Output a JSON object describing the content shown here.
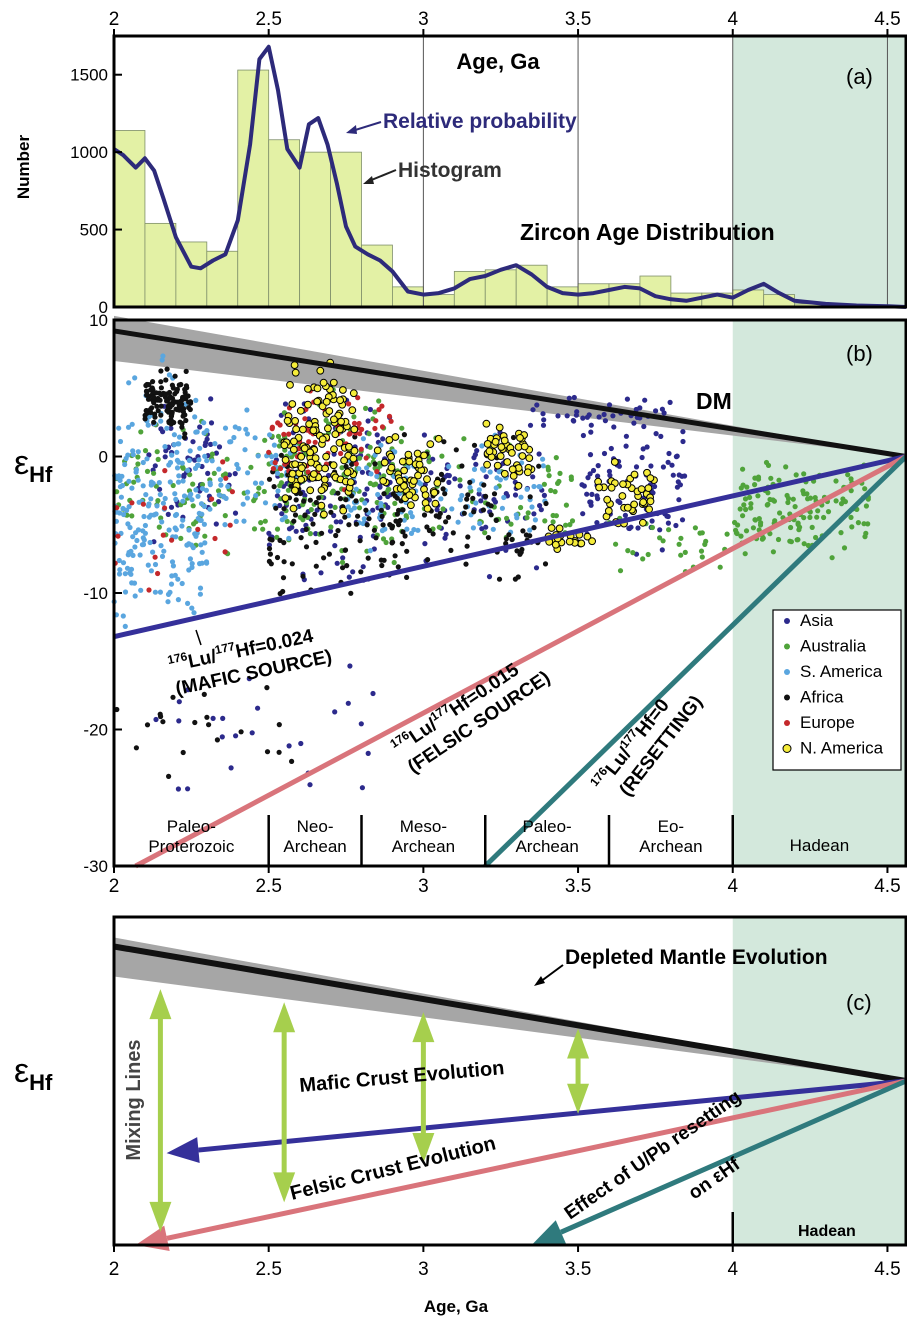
{
  "colors": {
    "hadean_bg": "#d3e8dc",
    "histogram_fill": "#e3f1a5",
    "prob_line": "#2d2a7a",
    "dm_line": "#111111",
    "dm_band": "#a6a6a6",
    "mafic_line": "#35309a",
    "felsic_line": "#d9747b",
    "resetting_line": "#2f7a7d",
    "mixing_arrow": "#a6cf4d",
    "asia": "#2c2a8c",
    "australia": "#4fa33a",
    "s_america": "#5aa6df",
    "africa": "#111111",
    "europe": "#c4282b",
    "n_america": "#f5ec3a"
  },
  "chart_data": [
    {
      "id": "a",
      "type": "bar",
      "panel_label": "(a)",
      "title": "Zircon Age Distribution",
      "xlabel": "Age, Ga",
      "ylabel": "Number",
      "xlim": [
        2,
        4.56
      ],
      "ylim": [
        0,
        1750
      ],
      "xticks": [
        2,
        2.5,
        3,
        3.5,
        4,
        4.5
      ],
      "xtick_labels": [
        "2",
        "2.5",
        "3",
        "3.5",
        "4",
        "4.5"
      ],
      "yticks": [
        0,
        500,
        1000,
        1500
      ],
      "ytick_labels": [
        "0",
        "500",
        "1000",
        "1500"
      ],
      "histogram": {
        "name": "Histogram",
        "bin_width": 0.1,
        "bin_starts": [
          2.0,
          2.1,
          2.2,
          2.3,
          2.4,
          2.5,
          2.6,
          2.7,
          2.8,
          2.9,
          3.0,
          3.1,
          3.2,
          3.3,
          3.4,
          3.5,
          3.6,
          3.7,
          3.8,
          3.9,
          4.0,
          4.1,
          4.2,
          4.3,
          4.4,
          4.5
        ],
        "counts": [
          1140,
          540,
          420,
          360,
          1530,
          1080,
          1000,
          1000,
          400,
          130,
          80,
          230,
          240,
          270,
          130,
          150,
          150,
          200,
          90,
          90,
          110,
          80,
          20,
          10,
          5,
          5
        ]
      },
      "probability_curve": {
        "name": "Relative probability",
        "x": [
          2.0,
          2.03,
          2.07,
          2.1,
          2.13,
          2.16,
          2.2,
          2.25,
          2.28,
          2.32,
          2.36,
          2.4,
          2.44,
          2.47,
          2.5,
          2.53,
          2.56,
          2.6,
          2.63,
          2.66,
          2.69,
          2.72,
          2.75,
          2.78,
          2.82,
          2.86,
          2.9,
          2.95,
          3.0,
          3.05,
          3.1,
          3.15,
          3.2,
          3.25,
          3.3,
          3.35,
          3.4,
          3.45,
          3.5,
          3.55,
          3.6,
          3.65,
          3.7,
          3.75,
          3.8,
          3.85,
          3.9,
          3.95,
          4.0,
          4.05,
          4.1,
          4.15,
          4.2,
          4.3,
          4.4,
          4.5,
          4.56
        ],
        "y": [
          1020,
          980,
          900,
          960,
          880,
          700,
          450,
          260,
          250,
          300,
          340,
          560,
          1050,
          1600,
          1680,
          1400,
          1020,
          900,
          1180,
          1220,
          1050,
          800,
          520,
          390,
          340,
          300,
          230,
          100,
          80,
          90,
          120,
          180,
          200,
          240,
          270,
          210,
          130,
          90,
          80,
          90,
          110,
          130,
          120,
          70,
          50,
          40,
          60,
          80,
          60,
          110,
          150,
          90,
          40,
          20,
          10,
          5,
          0
        ]
      },
      "annotations": [
        "Relative probability",
        "Histogram",
        "Zircon Age Distribution",
        "Age, Ga"
      ]
    },
    {
      "id": "b",
      "type": "scatter",
      "panel_label": "(b)",
      "xlabel": "",
      "ylabel": "εHf",
      "xlim": [
        2,
        4.56
      ],
      "ylim": [
        -30,
        10
      ],
      "xticks": [
        2,
        2.5,
        3,
        3.5,
        4,
        4.5
      ],
      "xtick_labels": [
        "2",
        "2.5",
        "3",
        "3.5",
        "4",
        "4.5"
      ],
      "yticks": [
        -30,
        -20,
        -10,
        0,
        10
      ],
      "ytick_labels": [
        "-30",
        "-20",
        "-10",
        "0",
        "10"
      ],
      "lines": [
        {
          "name": "DM",
          "x": [
            2.0,
            4.56
          ],
          "y": [
            9.2,
            0.0
          ]
        },
        {
          "name": "176Lu/177Hf=0.024 (MAFIC SOURCE)",
          "x": [
            2.0,
            4.56
          ],
          "y": [
            -13.2,
            0.0
          ]
        },
        {
          "name": "176Lu/177Hf=0.015 (FELSIC SOURCE)",
          "x": [
            2.07,
            4.56
          ],
          "y": [
            -30.0,
            0.0
          ]
        },
        {
          "name": "176Lu/177Hf=0 (RESETTING)",
          "x": [
            3.2,
            4.56
          ],
          "y": [
            -30.0,
            0.0
          ]
        }
      ],
      "dm_band": {
        "x": [
          2.0,
          4.56
        ],
        "upper": [
          10.3,
          0.0
        ],
        "lower": [
          7.0,
          0.0
        ]
      },
      "series": [
        {
          "name": "Asia",
          "clusters": [
            [
              2.1,
              2.4,
              -8,
              6,
              60
            ],
            [
              2.5,
              2.9,
              -12,
              7,
              120
            ],
            [
              3.0,
              3.4,
              -10,
              5,
              70
            ],
            [
              3.5,
              3.85,
              -8,
              4,
              90
            ],
            [
              3.3,
              3.8,
              1,
              5,
              40
            ],
            [
              2.1,
              2.9,
              -26,
              -14,
              25
            ]
          ]
        },
        {
          "name": "Australia",
          "clusters": [
            [
              2.0,
              2.5,
              -9,
              4,
              80
            ],
            [
              2.5,
              2.95,
              -10,
              6,
              140
            ],
            [
              3.0,
              3.5,
              -10,
              3,
              60
            ],
            [
              4.0,
              4.45,
              -9,
              1,
              140
            ],
            [
              3.6,
              4.0,
              -10,
              -3,
              30
            ]
          ]
        },
        {
          "name": "S. America",
          "clusters": [
            [
              2.0,
              2.3,
              -16,
              9,
              220
            ],
            [
              2.3,
              2.6,
              -8,
              6,
              60
            ],
            [
              2.75,
              3.0,
              -9,
              3,
              60
            ],
            [
              3.05,
              3.4,
              -8,
              3,
              50
            ]
          ]
        },
        {
          "name": "Africa",
          "clusters": [
            [
              2.1,
              2.25,
              1,
              7,
              120
            ],
            [
              2.5,
              2.95,
              -12,
              3,
              130
            ],
            [
              3.0,
              3.4,
              -12,
              3,
              70
            ],
            [
              2.0,
              2.6,
              -25,
              -14,
              20
            ]
          ]
        },
        {
          "name": "Europe",
          "clusters": [
            [
              2.5,
              2.9,
              -3,
              6,
              70
            ],
            [
              2.0,
              2.4,
              -12,
              3,
              20
            ]
          ]
        },
        {
          "name": "N. America",
          "clusters": [
            [
              2.55,
              2.78,
              -6,
              9,
              130
            ],
            [
              2.85,
              3.05,
              -6,
              3,
              55
            ],
            [
              3.2,
              3.35,
              -3,
              3,
              45
            ],
            [
              3.55,
              3.75,
              -6,
              0,
              40
            ],
            [
              3.4,
              3.55,
              -7,
              -5,
              20
            ]
          ]
        }
      ],
      "legend": {
        "placement": "bottom-right",
        "items": [
          "Asia",
          "Australia",
          "S. America",
          "Africa",
          "Europe",
          "N. America"
        ]
      },
      "eons": [
        {
          "label": [
            "Paleo-",
            "Proterozoic"
          ],
          "x0": 2.0,
          "x1": 2.5
        },
        {
          "label": [
            "Neo-",
            "Archean"
          ],
          "x0": 2.5,
          "x1": 2.8
        },
        {
          "label": [
            "Meso-",
            "Archean"
          ],
          "x0": 2.8,
          "x1": 3.2
        },
        {
          "label": [
            "Paleo-",
            "Archean"
          ],
          "x0": 3.2,
          "x1": 3.6
        },
        {
          "label": [
            "Eo-",
            "Archean"
          ],
          "x0": 3.6,
          "x1": 4.0
        },
        {
          "label": [
            "Hadean"
          ],
          "x0": 4.0,
          "x1": 4.56
        }
      ],
      "annotations": [
        "DM",
        "176Lu/177Hf=0.024",
        "(MAFIC SOURCE)",
        "176Lu/177Hf=0.015",
        "(FELSIC SOURCE)",
        "176Lu/177Hf=0",
        "(RESETTING)"
      ]
    },
    {
      "id": "c",
      "type": "line",
      "panel_label": "(c)",
      "xlabel": "Age, Ga",
      "ylabel": "εHf",
      "xlim": [
        2,
        4.56
      ],
      "ylim": [
        0,
        1
      ],
      "xticks": [
        2,
        2.5,
        3,
        3.5,
        4,
        4.5
      ],
      "xtick_labels": [
        "2",
        "2.5",
        "3",
        "3.5",
        "4",
        "4.5"
      ],
      "lines": [
        {
          "name": "Depleted Mantle Evolution",
          "x": [
            2.0,
            4.56
          ],
          "y": [
            0.91,
            0.5
          ]
        },
        {
          "name": "Mafic Crust Evolution",
          "x": [
            2.17,
            4.56
          ],
          "y": [
            0.28,
            0.5
          ]
        },
        {
          "name": "Felsic Crust Evolution",
          "x": [
            2.07,
            4.56
          ],
          "y": [
            0.0,
            0.5
          ]
        },
        {
          "name": "Effect of U/Pb resetting on εHf",
          "x": [
            3.35,
            4.56
          ],
          "y": [
            0.0,
            0.5
          ]
        }
      ],
      "mixing_arrows": [
        {
          "x": 2.15,
          "y0": 0.04,
          "y1": 0.78
        },
        {
          "x": 2.55,
          "y0": 0.13,
          "y1": 0.74
        },
        {
          "x": 3.0,
          "y0": 0.25,
          "y1": 0.71
        },
        {
          "x": 3.5,
          "y0": 0.4,
          "y1": 0.66
        }
      ],
      "annotations": [
        "Depleted Mantle Evolution",
        "Mafic Crust Evolution",
        "Felsic Crust Evolution",
        "Effect of U/Pb resetting",
        "on εHf",
        "Mixing Lines",
        "Hadean",
        "Age, Ga"
      ]
    }
  ]
}
